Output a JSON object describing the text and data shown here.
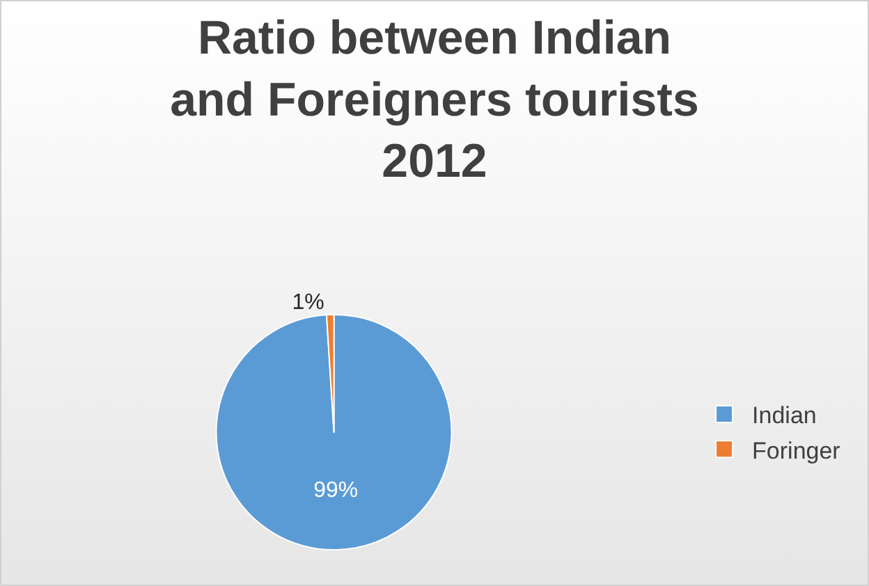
{
  "chart_data": {
    "type": "pie",
    "title": "Ratio between Indian and Foreigners tourists 2012",
    "categories": [
      "Indian",
      "Foringer"
    ],
    "values": [
      99,
      1
    ],
    "colors": [
      "#5b9bd5",
      "#ed7d31"
    ],
    "value_labels": [
      "99%",
      "1%"
    ],
    "legend": "right"
  }
}
